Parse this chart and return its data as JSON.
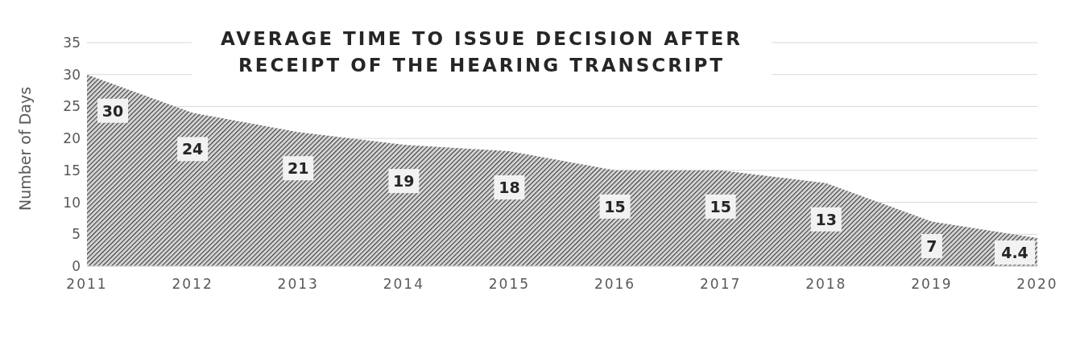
{
  "chart_data": {
    "type": "area",
    "title": "AVERAGE TIME TO ISSUE DECISION AFTER RECEIPT OF THE HEARING TRANSCRIPT",
    "ylabel": "Number of Days",
    "x": [
      2011,
      2012,
      2013,
      2014,
      2015,
      2016,
      2017,
      2018,
      2019,
      2020
    ],
    "series": [
      {
        "color": "#404040",
        "values": [
          30,
          24,
          21,
          19,
          18,
          15,
          15,
          13,
          7,
          4.4
        ]
      }
    ],
    "xlim": [
      2011,
      2020
    ],
    "xticks": [
      2011,
      2012,
      2013,
      2014,
      2015,
      2016,
      2017,
      2018,
      2019,
      2020
    ],
    "ylim": [
      0,
      35
    ],
    "yticks": [
      0,
      5,
      10,
      15,
      20,
      25,
      30,
      35
    ],
    "grid": "y",
    "data_labels": true
  }
}
